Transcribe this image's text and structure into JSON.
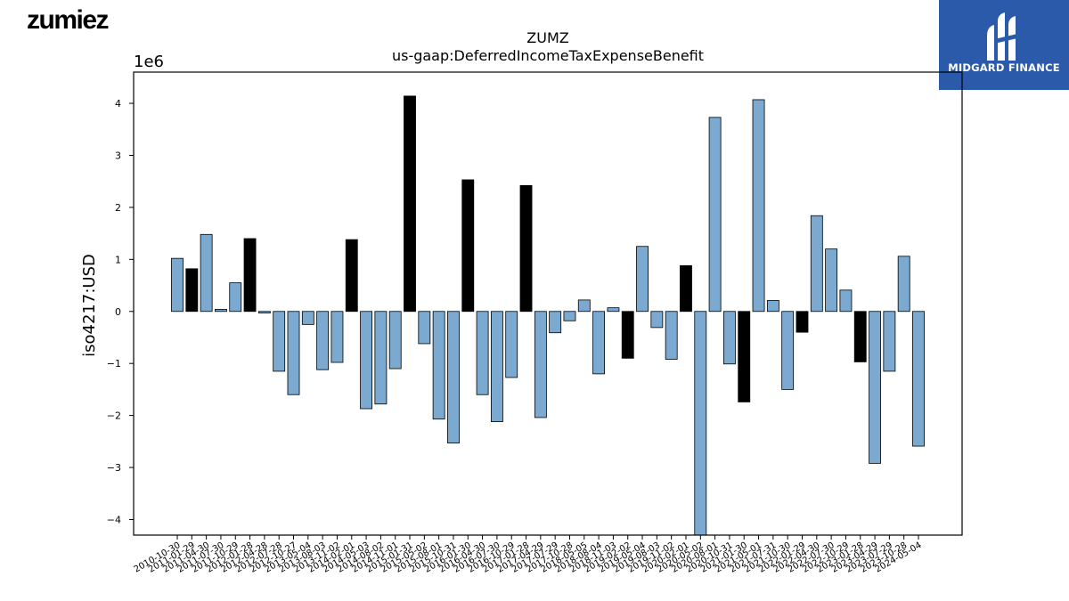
{
  "branding": {
    "company_logo_text": "zumiez",
    "publisher_logo_text": "MIDGARD FINANCE"
  },
  "colors": {
    "bar_default": "#7ba9d0",
    "bar_highlight": "#000000",
    "logo_bg": "#2b5aab"
  },
  "chart_data": {
    "type": "bar",
    "title": "ZUMZ",
    "subtitle": "us-gaap:DeferredIncomeTaxExpenseBenefit",
    "xlabel": "",
    "ylabel": "iso4217:USD",
    "y_scale_label": "1e6",
    "ylim": [
      -4.3,
      4.6
    ],
    "yticks": [
      -4,
      -3,
      -2,
      -1,
      0,
      1,
      2,
      3,
      4
    ],
    "ytick_labels": [
      "−4",
      "−3",
      "−2",
      "−1",
      "0",
      "1",
      "2",
      "3",
      "4"
    ],
    "grid": false,
    "categories": [
      "2010-10-30",
      "2011-01-29",
      "2011-04-30",
      "2011-07-30",
      "2011-10-29",
      "2012-01-28",
      "2012-04-28",
      "2012-07-28",
      "2012-10-27",
      "2013-05-04",
      "2013-08-03",
      "2013-11-02",
      "2014-02-01",
      "2014-05-03",
      "2014-08-02",
      "2014-11-01",
      "2015-01-31",
      "2015-05-02",
      "2015-08-01",
      "2015-10-31",
      "2016-01-30",
      "2016-04-30",
      "2016-07-30",
      "2016-10-29",
      "2017-01-28",
      "2017-04-29",
      "2017-07-29",
      "2017-10-28",
      "2018-05-05",
      "2018-08-04",
      "2018-11-03",
      "2019-02-02",
      "2019-05-04",
      "2019-08-03",
      "2019-11-02",
      "2020-02-01",
      "2020-05-02",
      "2020-08-01",
      "2020-10-31",
      "2021-01-30",
      "2021-05-01",
      "2021-07-31",
      "2021-10-30",
      "2022-01-29",
      "2022-04-30",
      "2022-07-30",
      "2022-10-29",
      "2023-01-28",
      "2023-04-29",
      "2023-07-29",
      "2023-10-28",
      "2024-05-04"
    ],
    "tick_labels": [
      "2010-10-30",
      "2011-01-29",
      "2011-04-30",
      "2011-07-30",
      "2011-10-29",
      "2012-01-28",
      "2012-04-28",
      "2012-07-28",
      "2012-10-27",
      "2013-05-04",
      "2013-08-03",
      "2013-11-02",
      "2014-02-01",
      "2014-05-03",
      "2014-08-02",
      "2014-11-01",
      "2015-01-31",
      "2015-05-02",
      "2015-08-01",
      "2015-10-31",
      "2016-01-30",
      "2016-04-30",
      "2016-07-30",
      "2016-10-29",
      "2017-01-28",
      "2017-04-29",
      "2017-07-29",
      "2017-10-28",
      "2018-05-05",
      "2018-08-04",
      "2018-11-03",
      "2019-02-02",
      "2019-05-04",
      "2019-08-03",
      "2019-11-02",
      "2020-02-01",
      "2020-05-02",
      "2020-08-01",
      "2020-10-31",
      "2021-01-30",
      "2021-05-01",
      "2021-07-31",
      "2021-10-30",
      "2022-01-29",
      "2022-04-30",
      "2022-07-30",
      "2022-10-29",
      "2023-01-28",
      "2023-04-29",
      "2023-07-29",
      "2023-10-28",
      "2024-05-04"
    ],
    "values": [
      1.02,
      0.82,
      1.48,
      0.04,
      0.55,
      1.4,
      -0.03,
      -1.15,
      -1.6,
      -0.25,
      -1.12,
      -0.98,
      1.38,
      -1.87,
      -1.78,
      -1.1,
      4.14,
      -0.62,
      -2.07,
      -2.53,
      2.53,
      -1.6,
      -2.12,
      -1.27,
      2.42,
      -2.04,
      -0.41,
      -0.18,
      0.22,
      -1.2,
      0.07,
      -0.9,
      1.25,
      -0.31,
      -0.92,
      0.88,
      -4.3,
      3.73,
      -1.01,
      -1.74,
      4.07,
      0.21,
      -1.5,
      -0.4,
      1.84,
      1.2,
      0.41,
      -0.97,
      -2.92,
      -1.15,
      1.06,
      -2.59
    ],
    "highlighted": [
      false,
      true,
      false,
      false,
      false,
      true,
      false,
      false,
      false,
      false,
      false,
      false,
      true,
      false,
      false,
      false,
      true,
      false,
      false,
      false,
      true,
      false,
      false,
      false,
      true,
      false,
      false,
      false,
      false,
      false,
      false,
      true,
      false,
      false,
      false,
      true,
      false,
      false,
      false,
      true,
      false,
      false,
      false,
      true,
      false,
      false,
      false,
      true,
      false,
      false,
      false,
      false
    ]
  }
}
